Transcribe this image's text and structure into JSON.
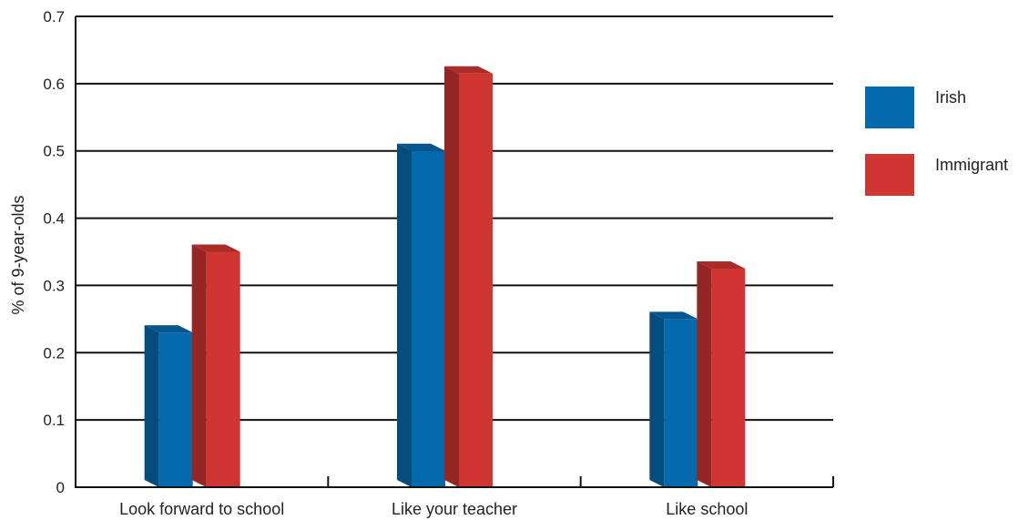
{
  "chart_data": {
    "type": "bar",
    "title": "",
    "xlabel": "",
    "ylabel": "% of 9-year-olds",
    "ylim": [
      0,
      0.7
    ],
    "yticks": [
      "0",
      "0.1",
      "0.2",
      "0.3",
      "0.4",
      "0.5",
      "0.6",
      "0.7"
    ],
    "grid": true,
    "legend_position": "right",
    "categories": [
      "Look forward to school",
      "Like your teacher",
      "Like school"
    ],
    "series": [
      {
        "name": "Irish",
        "values": [
          0.23,
          0.5,
          0.25
        ],
        "color": "#0469ad"
      },
      {
        "name": "Immigrant",
        "values": [
          0.35,
          0.615,
          0.325
        ],
        "color": "#cf3531"
      }
    ]
  }
}
